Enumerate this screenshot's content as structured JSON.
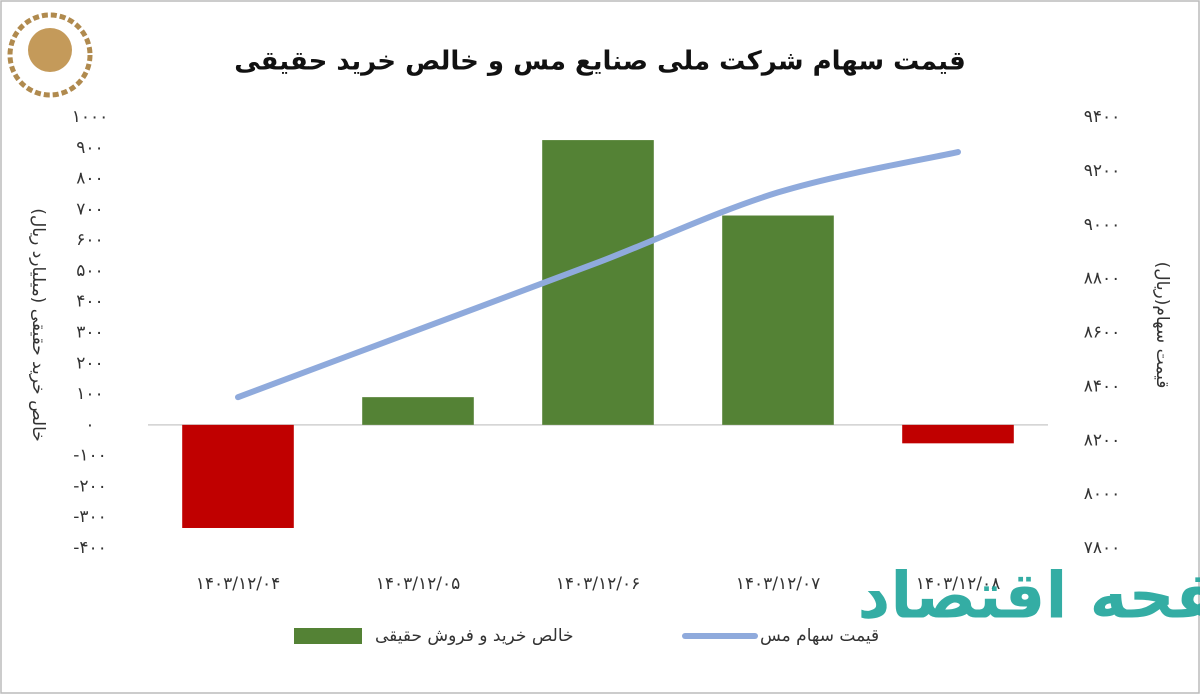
{
  "chart_data": {
    "type": "bar",
    "title": "قیمت سهام شرکت ملی صنایع مس و خالص خرید حقیقی",
    "y_label": "خالص خرید حقیقی (میلیارد ریال)",
    "y2_label": "قیمت سهام(ریال)",
    "watermark": "صفحه اقتصاد",
    "categories": [
      "۱۴۰۳/۱۲/۰۴",
      "۱۴۰۳/۱۲/۰۵",
      "۱۴۰۳/۱۲/۰۶",
      "۱۴۰۳/۱۲/۰۷",
      "۱۴۰۳/۱۲/۰۸"
    ],
    "series": [
      {
        "name": "خالص خرید و فروش حقیقی",
        "type": "bar",
        "color": "#548235",
        "negative_color": "#c00000",
        "values": [
          -335,
          90,
          925,
          680,
          -60
        ]
      },
      {
        "name": "قیمت سهام مس",
        "type": "line",
        "axis": "y2",
        "color": "#8faadc",
        "values": [
          8360,
          8610,
          8860,
          9120,
          9270
        ]
      }
    ],
    "ylim": [
      -400,
      1000
    ],
    "yticks": [
      {
        "value": -400,
        "label": "-۴۰۰"
      },
      {
        "value": -300,
        "label": "-۳۰۰"
      },
      {
        "value": -200,
        "label": "-۲۰۰"
      },
      {
        "value": -100,
        "label": "-۱۰۰"
      },
      {
        "value": 0,
        "label": "۰"
      },
      {
        "value": 100,
        "label": "۱۰۰"
      },
      {
        "value": 200,
        "label": "۲۰۰"
      },
      {
        "value": 300,
        "label": "۳۰۰"
      },
      {
        "value": 400,
        "label": "۴۰۰"
      },
      {
        "value": 500,
        "label": "۵۰۰"
      },
      {
        "value": 600,
        "label": "۶۰۰"
      },
      {
        "value": 700,
        "label": "۷۰۰"
      },
      {
        "value": 800,
        "label": "۸۰۰"
      },
      {
        "value": 900,
        "label": "۹۰۰"
      },
      {
        "value": 1000,
        "label": "۱۰۰۰"
      }
    ],
    "y2lim": [
      7800,
      9400
    ],
    "y2ticks": [
      {
        "value": 7800,
        "label": "۷۸۰۰"
      },
      {
        "value": 8000,
        "label": "۸۰۰۰"
      },
      {
        "value": 8200,
        "label": "۸۲۰۰"
      },
      {
        "value": 8400,
        "label": "۸۴۰۰"
      },
      {
        "value": 8600,
        "label": "۸۶۰۰"
      },
      {
        "value": 8800,
        "label": "۸۸۰۰"
      },
      {
        "value": 9000,
        "label": "۹۰۰۰"
      },
      {
        "value": 9200,
        "label": "۹۲۰۰"
      },
      {
        "value": 9400,
        "label": "۹۴۰۰"
      }
    ],
    "grid": false
  }
}
